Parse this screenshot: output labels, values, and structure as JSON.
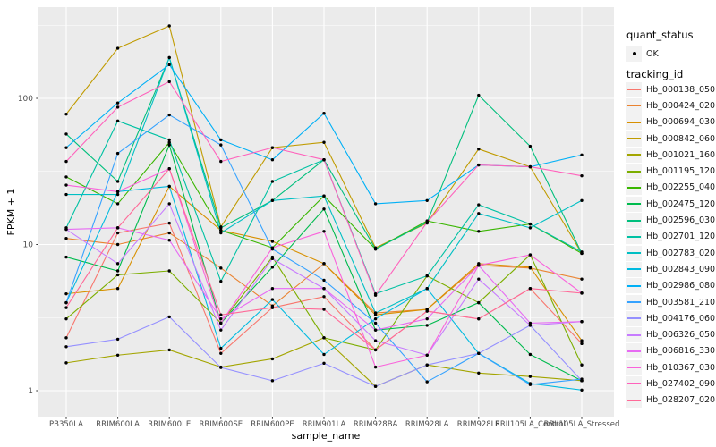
{
  "chart_data": {
    "type": "line",
    "title": "",
    "xlabel": "sample_name",
    "ylabel": "FPKM + 1",
    "yscale": "log10",
    "ylim": [
      1,
      400
    ],
    "ytick_values": [
      1,
      10,
      100
    ],
    "ytick_labels": [
      "1",
      "10",
      "100"
    ],
    "yminor_values": [
      3.1623,
      31.623,
      316.23
    ],
    "grid": true,
    "panel_bg": "#EBEBEB",
    "grid_color": "#FFFFFF",
    "point_color": "#000000",
    "axis_text_color": "#4D4D4D",
    "tick_color": "#333333",
    "legend_position": "right",
    "categories": [
      "PB350LA",
      "RRIM600LA",
      "RRIM600LE",
      "RRIM600SE",
      "RRIM600PE",
      "RRIM901LA",
      "RRIM928BA",
      "RRIM928LA",
      "RRIM928LE",
      "RRII105LA_Control",
      "RRII105LA_Stressed"
    ],
    "legend": {
      "quant_status_title": "quant_status",
      "quant_status_items": [
        {
          "label": "OK",
          "symbol": "point"
        }
      ],
      "tracking_title": "tracking_id"
    },
    "series": [
      {
        "name": "Hb_000138_050",
        "color": "#F8766D",
        "values": [
          2.3,
          12,
          14,
          1.8,
          3.7,
          4.4,
          1.9,
          3.5,
          3.1,
          5.0,
          2.1
        ]
      },
      {
        "name": "Hb_000424_020",
        "color": "#EA8331",
        "values": [
          11,
          10,
          12,
          6.9,
          3.8,
          7.4,
          3.4,
          3.6,
          7.2,
          6.9,
          5.8
        ]
      },
      {
        "name": "Hb_000694_030",
        "color": "#D89000",
        "values": [
          4.6,
          5.0,
          25,
          12.5,
          10.5,
          7.4,
          3.3,
          3.6,
          7.4,
          7.0,
          2.2
        ]
      },
      {
        "name": "Hb_000842_060",
        "color": "#C09B00",
        "values": [
          78,
          220,
          313,
          13.2,
          46,
          50,
          9.5,
          14,
          45,
          34,
          8.7
        ]
      },
      {
        "name": "Hb_001021_160",
        "color": "#A3A500",
        "values": [
          1.55,
          1.75,
          1.9,
          1.45,
          1.65,
          2.3,
          1.07,
          1.5,
          1.32,
          1.25,
          1.17
        ]
      },
      {
        "name": "Hb_001195_120",
        "color": "#7CAE00",
        "values": [
          3.1,
          6.2,
          6.6,
          2.9,
          8.2,
          2.3,
          1.9,
          6.1,
          4.0,
          8.5,
          1.5
        ]
      },
      {
        "name": "Hb_002255_040",
        "color": "#39B600",
        "values": [
          29,
          19,
          50,
          12.5,
          9.5,
          21.5,
          9.3,
          14.5,
          12.3,
          13.8,
          8.7
        ]
      },
      {
        "name": "Hb_002475_120",
        "color": "#00BB4E",
        "values": [
          8.2,
          6.6,
          48,
          2.9,
          7.0,
          17.5,
          2.6,
          2.8,
          4.0,
          1.77,
          1.17
        ]
      },
      {
        "name": "Hb_002596_030",
        "color": "#00BF7D",
        "values": [
          57,
          27,
          190,
          13,
          20,
          38,
          9.3,
          14.2,
          105,
          47,
          8.7
        ]
      },
      {
        "name": "Hb_002701_120",
        "color": "#00C1A3",
        "values": [
          13,
          70,
          52,
          5.6,
          27,
          38,
          4.6,
          6.1,
          18.7,
          13.8,
          8.9
        ]
      },
      {
        "name": "Hb_002783_020",
        "color": "#00BFC4",
        "values": [
          22,
          22,
          190,
          12,
          20,
          21.5,
          3.4,
          5.0,
          16.3,
          13,
          20
        ]
      },
      {
        "name": "Hb_002843_090",
        "color": "#00BAE0",
        "values": [
          4.0,
          23,
          25,
          1.95,
          4.2,
          1.77,
          3.1,
          5.0,
          1.8,
          1.12,
          1.01
        ]
      },
      {
        "name": "Hb_002986_080",
        "color": "#00B0F6",
        "values": [
          46,
          93,
          170,
          52,
          38,
          79,
          19,
          20,
          35,
          34,
          41
        ]
      },
      {
        "name": "Hb_003581_210",
        "color": "#35A2FF",
        "values": [
          4.0,
          42,
          77,
          48,
          9.3,
          5.7,
          2.9,
          1.15,
          1.8,
          1.1,
          1.2
        ]
      },
      {
        "name": "Hb_004176_060",
        "color": "#9590FF",
        "values": [
          2.0,
          2.25,
          3.2,
          1.44,
          1.17,
          1.54,
          1.07,
          1.5,
          1.8,
          2.8,
          1.17
        ]
      },
      {
        "name": "Hb_006326_050",
        "color": "#C77CFF",
        "values": [
          12.7,
          7.4,
          19,
          2.6,
          8.0,
          5.0,
          2.2,
          1.75,
          5.8,
          2.8,
          2.97
        ]
      },
      {
        "name": "Hb_006816_330",
        "color": "#E76BF3",
        "values": [
          12.7,
          13,
          10.7,
          3.1,
          5.0,
          5.0,
          2.6,
          3.1,
          7.2,
          2.9,
          2.97
        ]
      },
      {
        "name": "Hb_010367_030",
        "color": "#FA62DB",
        "values": [
          25.5,
          23,
          33,
          2.9,
          9.5,
          12.3,
          1.45,
          1.75,
          7.2,
          8.5,
          4.65
        ]
      },
      {
        "name": "Hb_027402_090",
        "color": "#FF62BC",
        "values": [
          37,
          87,
          130,
          37,
          46,
          38,
          4.5,
          14.2,
          35,
          34,
          29.5
        ]
      },
      {
        "name": "Hb_028207_020",
        "color": "#FF6A98",
        "values": [
          3.7,
          13,
          33,
          3.3,
          3.7,
          3.6,
          1.9,
          3.5,
          3.1,
          5.0,
          4.65
        ]
      }
    ]
  }
}
